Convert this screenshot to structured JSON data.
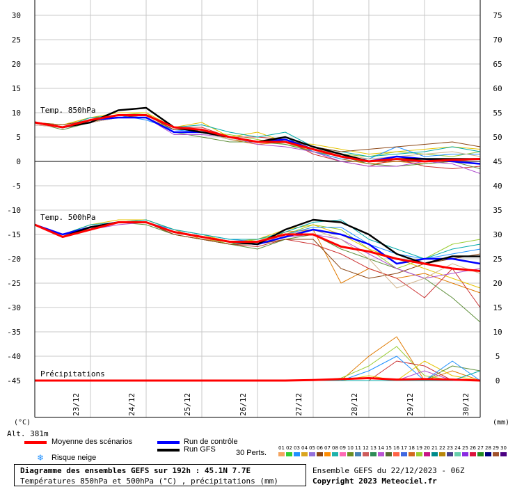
{
  "chart_data": {
    "type": "line",
    "title": "Diagramme des ensembles GEFS sur 192h : 45.1N 7.7E",
    "subtitle": "Températures 850hPa et 500hPa (°C) , précipitations (mm)",
    "left_axis": {
      "unit": "(°C)",
      "range": [
        -55,
        30
      ],
      "ticks": [
        30,
        25,
        20,
        15,
        10,
        5,
        0,
        -5,
        -10,
        -15,
        -20,
        -25,
        -30,
        -35,
        -40,
        -45
      ]
    },
    "right_axis": {
      "unit": "(mm)",
      "range": [
        -10,
        75
      ],
      "ticks": [
        75,
        70,
        65,
        60,
        55,
        50,
        45,
        40,
        35,
        30,
        25,
        20,
        15,
        10,
        5,
        0
      ]
    },
    "x_axis": {
      "range": [
        0,
        192
      ],
      "categories": [
        "23/12",
        "24/12",
        "25/12",
        "26/12",
        "27/12",
        "28/12",
        "29/12",
        "30/12"
      ],
      "category_hours": [
        18,
        42,
        66,
        90,
        114,
        138,
        162,
        186
      ]
    },
    "altitude": "Alt. 381m",
    "panel_labels": {
      "t850": "Temp. 850hPa",
      "t500": "Temp. 500hPa",
      "precip": "Précipitations"
    },
    "x": [
      0,
      12,
      24,
      36,
      48,
      60,
      72,
      84,
      96,
      108,
      120,
      132,
      144,
      156,
      168,
      180,
      192
    ],
    "series": [
      {
        "name": "Moyenne des scénarios",
        "color": "#ff0000",
        "panel": "t850",
        "values": [
          8,
          7,
          8.5,
          9.5,
          9.5,
          7,
          6.5,
          5,
          4,
          4,
          2.5,
          1,
          0,
          0.5,
          0,
          0.3,
          0.5
        ]
      },
      {
        "name": "Run de contrôle",
        "color": "#0000ff",
        "panel": "t850",
        "values": [
          8,
          7,
          8.5,
          9,
          9,
          6,
          6,
          5,
          4,
          4.5,
          2.5,
          1,
          0,
          1,
          0.5,
          0,
          -0.5
        ]
      },
      {
        "name": "Run GFS",
        "color": "#000000",
        "panel": "t850",
        "values": [
          8,
          7,
          8,
          10.5,
          11,
          7,
          6,
          5,
          4,
          5,
          3,
          1.5,
          0,
          0.5,
          0.5,
          0.5,
          0.5
        ]
      },
      {
        "name": "Moyenne des scénarios",
        "color": "#ff0000",
        "panel": "t500",
        "values": [
          -13,
          -15.5,
          -14,
          -12.5,
          -12.5,
          -14.5,
          -15.5,
          -16.5,
          -16.5,
          -15,
          -15,
          -17.5,
          -18.5,
          -20,
          -21,
          -22,
          -22.5
        ]
      },
      {
        "name": "Run de contrôle",
        "color": "#0000ff",
        "panel": "t500",
        "values": [
          -13,
          -15,
          -13.5,
          -12.5,
          -12.5,
          -14.5,
          -15.5,
          -16.5,
          -17,
          -15.5,
          -14,
          -15,
          -17,
          -21,
          -20,
          -20,
          -21
        ]
      },
      {
        "name": "Run GFS",
        "color": "#000000",
        "panel": "t500",
        "values": [
          -13,
          -15.5,
          -13.5,
          -12.5,
          -12.5,
          -14.5,
          -15.5,
          -16.5,
          -17,
          -14,
          -12,
          -12.5,
          -15,
          -19,
          -21,
          -19.5,
          -19.5
        ]
      },
      {
        "name": "Moyenne des scénarios",
        "color": "#ff0000",
        "panel": "precip",
        "values": [
          0,
          0,
          0,
          0,
          0,
          0,
          0,
          0,
          0,
          0,
          0.1,
          0.3,
          0.5,
          0.2,
          0.3,
          0.2,
          0
        ]
      }
    ],
    "perturbation_traces": {
      "colors": [
        "#e07a00",
        "#9acd32",
        "#cc3333",
        "#e6c300",
        "#5e8f3a",
        "#1e90ff",
        "#b04fcf",
        "#00aaaa",
        "#8b4513",
        "#d2b48c"
      ],
      "t850": [
        [
          8,
          7.5,
          9,
          9,
          9,
          6.5,
          6.5,
          4.5,
          3.5,
          4,
          2,
          0.5,
          -0.5,
          0,
          -0.5,
          0,
          0.5
        ],
        [
          8,
          7,
          8,
          9.5,
          10,
          6,
          6,
          5.5,
          4.5,
          3.5,
          2.5,
          1.5,
          1,
          2,
          1.5,
          1,
          2
        ],
        [
          7.5,
          7,
          8,
          9,
          9.5,
          7,
          7,
          5,
          5,
          4.5,
          1.5,
          0,
          -1,
          0.5,
          -1,
          -1.5,
          -1
        ],
        [
          8,
          7.5,
          9,
          10,
          10,
          7,
          8,
          5,
          6,
          4,
          3.5,
          2.5,
          1.5,
          2,
          2.5,
          3,
          2.5
        ],
        [
          8,
          6.5,
          8,
          9,
          9,
          6,
          5,
          4,
          4,
          3.5,
          2,
          1,
          -0.5,
          -1,
          -0.5,
          0,
          -1.5
        ],
        [
          8,
          7,
          8.5,
          9.5,
          8.5,
          6.5,
          6,
          4.5,
          4,
          5,
          2,
          0.5,
          0.5,
          3,
          1,
          1.5,
          1.5
        ],
        [
          7.5,
          7,
          8,
          9,
          9,
          5.5,
          5.5,
          5,
          3.5,
          3,
          2,
          0,
          -1,
          -1,
          0,
          -0.5,
          -2.5
        ],
        [
          8,
          7,
          9,
          9.5,
          9.5,
          7,
          7.5,
          6,
          5,
          6,
          3,
          2,
          1,
          1.5,
          2,
          3,
          2
        ],
        [
          8,
          7.5,
          8.5,
          9,
          9.5,
          6.5,
          6.5,
          5,
          4,
          4.5,
          3,
          2,
          2.5,
          3,
          3.5,
          4,
          3
        ],
        [
          7.5,
          7,
          8,
          9,
          9,
          6,
          6,
          4.5,
          4,
          4,
          2.5,
          1.5,
          0.5,
          1,
          1.5,
          2,
          1
        ]
      ],
      "t500": [
        [
          -13,
          -15.5,
          -14,
          -12.5,
          -12,
          -14,
          -16,
          -16.5,
          -17,
          -14.5,
          -14,
          -25,
          -22,
          -24,
          -23,
          -25,
          -27
        ],
        [
          -13,
          -15,
          -13.5,
          -12.5,
          -12.5,
          -14.5,
          -15.5,
          -17,
          -16,
          -15,
          -13,
          -14,
          -18,
          -22,
          -20,
          -17,
          -16
        ],
        [
          -13,
          -15.5,
          -14,
          -12.5,
          -12.5,
          -15,
          -16,
          -17,
          -17.5,
          -16,
          -17,
          -19,
          -22,
          -24,
          -28,
          -22,
          -30
        ],
        [
          -13,
          -15,
          -13,
          -12,
          -12,
          -14,
          -15,
          -16.5,
          -16,
          -14,
          -13,
          -15,
          -18,
          -20,
          -22,
          -24,
          -26
        ],
        [
          -13,
          -15.5,
          -14,
          -12.5,
          -13,
          -15,
          -16,
          -17,
          -18,
          -16,
          -15,
          -18,
          -20,
          -22,
          -24,
          -28,
          -33
        ],
        [
          -13,
          -15,
          -13.5,
          -12.5,
          -12.5,
          -14,
          -15,
          -16,
          -16.5,
          -15,
          -13.5,
          -13.5,
          -17,
          -19,
          -20,
          -19,
          -18
        ],
        [
          -13,
          -15.5,
          -14,
          -13,
          -12.5,
          -14.5,
          -15.5,
          -16.5,
          -17,
          -15.5,
          -15,
          -16,
          -19,
          -22,
          -24,
          -23,
          -22
        ],
        [
          -13,
          -15,
          -13,
          -12.5,
          -12,
          -14,
          -15,
          -16,
          -16,
          -14.5,
          -12.5,
          -12,
          -16,
          -18,
          -20,
          -18,
          -17
        ],
        [
          -13,
          -15.5,
          -14,
          -12.5,
          -12.5,
          -15,
          -16,
          -17,
          -17,
          -16,
          -16,
          -22,
          -24,
          -23,
          -21,
          -20,
          -19
        ],
        [
          -13,
          -15,
          -13.5,
          -12.5,
          -12.5,
          -14.5,
          -15.5,
          -16.5,
          -17,
          -15,
          -14,
          -16,
          -20,
          -26,
          -24,
          -21,
          -23
        ]
      ],
      "precip": [
        [
          0,
          0,
          0,
          0,
          0,
          0,
          0,
          0,
          0,
          0,
          0,
          0,
          5,
          9,
          0,
          2,
          0
        ],
        [
          0,
          0,
          0,
          0,
          0,
          0,
          0,
          0,
          0,
          0,
          0,
          0.5,
          3,
          7,
          1,
          0,
          0
        ],
        [
          0,
          0,
          0,
          0,
          0,
          0,
          0,
          0,
          0,
          0,
          0,
          0,
          0,
          4,
          3,
          0,
          0
        ],
        [
          0,
          0,
          0,
          0,
          0,
          0,
          0,
          0,
          0,
          0,
          0,
          0,
          1,
          0,
          4,
          1,
          0
        ],
        [
          0,
          0,
          0,
          0,
          0,
          0,
          0,
          0,
          0,
          0,
          0,
          0,
          0,
          0,
          0,
          3,
          2
        ],
        [
          0,
          0,
          0,
          0,
          0,
          0,
          0,
          0,
          0,
          0,
          0,
          0,
          2,
          5,
          0,
          4,
          0
        ],
        [
          0,
          0,
          0,
          0,
          0,
          0,
          0,
          0,
          0,
          0,
          0,
          0,
          0,
          0,
          2,
          0,
          0
        ],
        [
          0,
          0,
          0,
          0,
          0,
          0,
          0,
          0,
          0,
          0,
          0,
          0,
          0,
          0,
          0,
          0,
          2
        ]
      ]
    }
  },
  "legend": {
    "mean_label": "Moyenne des scénarios",
    "control_label": "Run de contrôle",
    "gfs_label": "Run GFS",
    "snow_label": "Risque neige",
    "perts_label": "30 Perts.",
    "perturbation_numbers": [
      "01",
      "02",
      "03",
      "04",
      "05",
      "06",
      "07",
      "08",
      "09",
      "10",
      "11",
      "12",
      "13",
      "14",
      "15",
      "16",
      "17",
      "18",
      "19",
      "20",
      "21",
      "22",
      "23",
      "24",
      "25",
      "26",
      "27",
      "28",
      "29",
      "30"
    ],
    "perturbation_colors": [
      "#f4a460",
      "#32cd32",
      "#1e90ff",
      "#daa520",
      "#9370db",
      "#8b4513",
      "#ff8c00",
      "#20b2aa",
      "#ff69b4",
      "#6b8e23",
      "#4682b4",
      "#cd5c5c",
      "#2e8b57",
      "#ba55d3",
      "#556b2f",
      "#ff6347",
      "#4169e1",
      "#d2691e",
      "#9acd32",
      "#c71585",
      "#008b8b",
      "#b8860b",
      "#483d8b",
      "#66cdaa",
      "#8a2be2",
      "#dc143c",
      "#228b22",
      "#000080",
      "#a0522d",
      "#4b0082"
    ]
  },
  "footer": {
    "title": "Diagramme des ensembles GEFS sur 192h : 45.1N 7.7E",
    "subtitle": "Températures 850hPa et 500hPa (°C) , précipitations (mm)",
    "ensemble_info": "Ensemble GEFS du 22/12/2023 - 06Z",
    "copyright": "Copyright 2023 Meteociel.fr"
  }
}
